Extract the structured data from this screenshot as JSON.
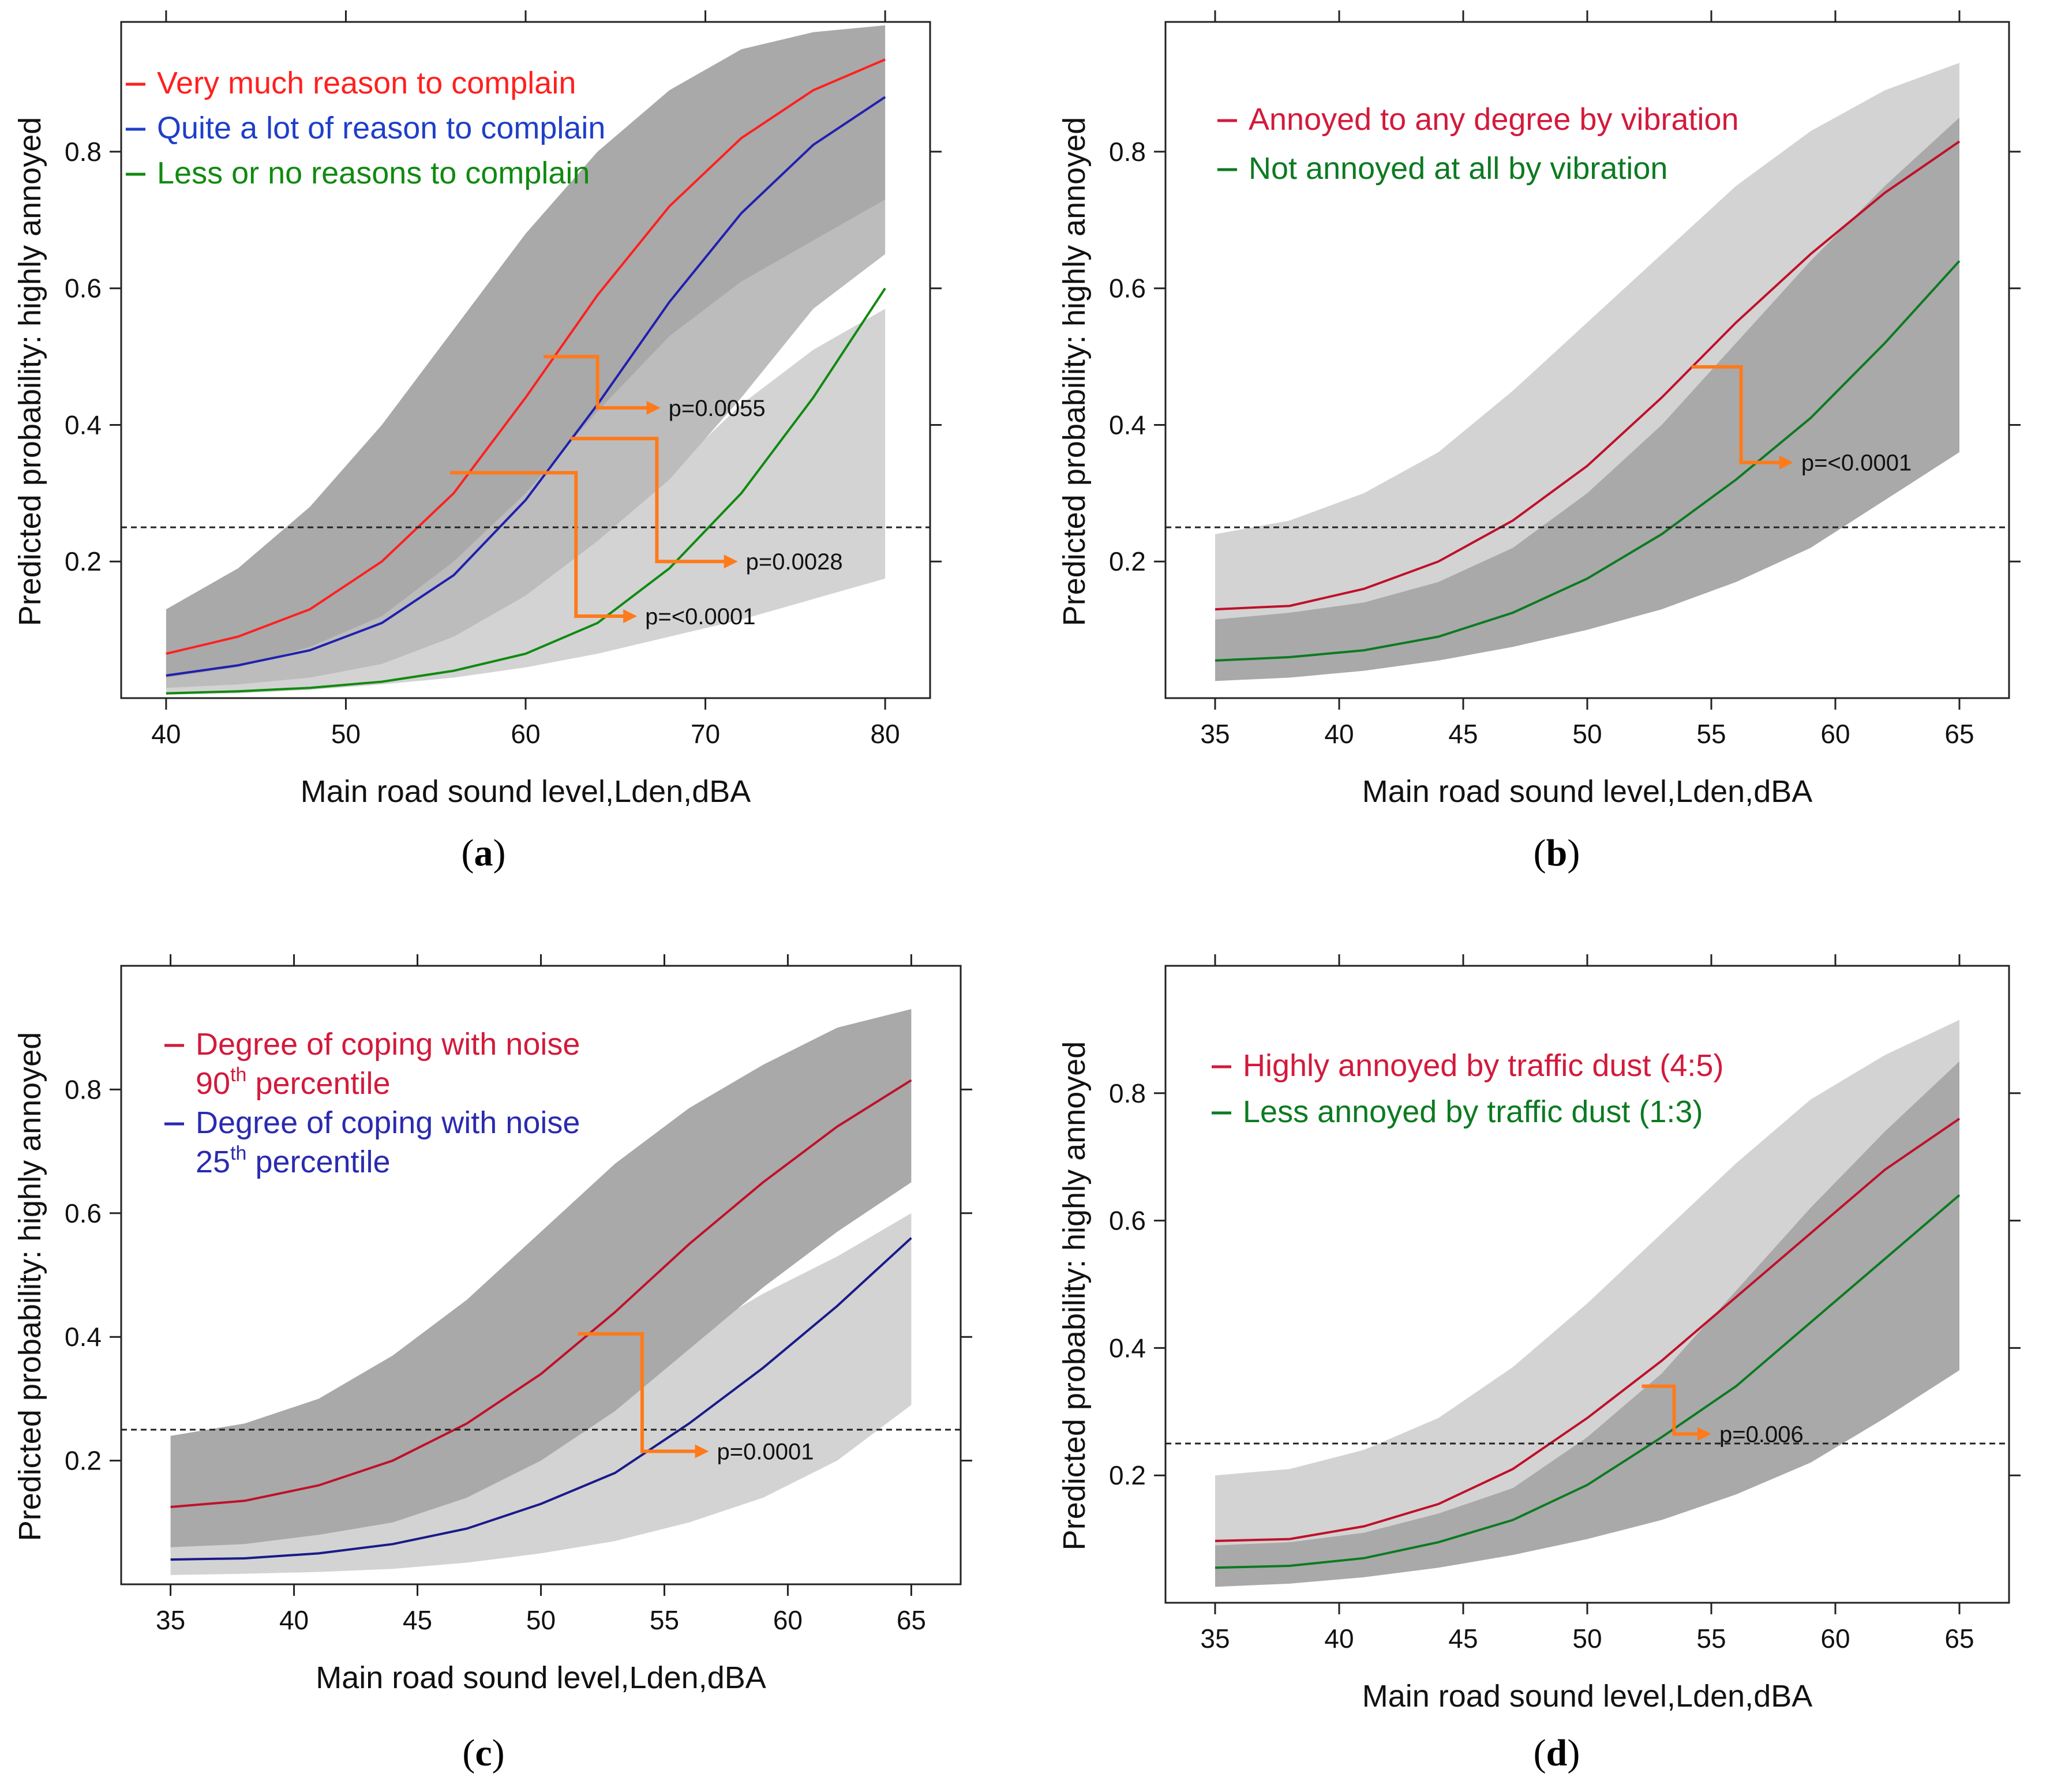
{
  "figure": {
    "description_labels": [
      "(a)",
      "(b)",
      "(c)",
      "(d)"
    ]
  },
  "chart_data": [
    {
      "id": "a",
      "type": "line",
      "caption_letter": "a",
      "xlabel": "Main road sound level,Lden,dBA",
      "ylabel": "Predicted probability: highly annoyed",
      "xlim": [
        37.5,
        82.5
      ],
      "ylim": [
        0,
        0.99
      ],
      "xticks": [
        40,
        50,
        60,
        70,
        80
      ],
      "yticks": [
        0.2,
        0.4,
        0.6,
        0.8
      ],
      "threshold": 0.25,
      "x": [
        40,
        44,
        48,
        52,
        56,
        60,
        64,
        68,
        72,
        76,
        80
      ],
      "bands": [
        {
          "name": "Less or no reasons to complain CI",
          "color": "#d3d3d3",
          "lower": [
            0.005,
            0.007,
            0.012,
            0.02,
            0.03,
            0.045,
            0.065,
            0.09,
            0.115,
            0.145,
            0.175
          ],
          "upper": [
            0.015,
            0.025,
            0.04,
            0.07,
            0.12,
            0.18,
            0.25,
            0.33,
            0.43,
            0.51,
            0.57
          ]
        },
        {
          "name": "Quite a lot of reason to complain CI",
          "color": "#bcbcbc",
          "lower": [
            0.015,
            0.02,
            0.03,
            0.05,
            0.09,
            0.15,
            0.23,
            0.32,
            0.44,
            0.57,
            0.65
          ],
          "upper": [
            0.07,
            0.1,
            0.14,
            0.22,
            0.33,
            0.46,
            0.55,
            0.62,
            0.67,
            0.7,
            0.73
          ]
        },
        {
          "name": "Very much reason to complain CI",
          "color": "#a9a9a9",
          "lower": [
            0.03,
            0.045,
            0.075,
            0.12,
            0.2,
            0.3,
            0.42,
            0.53,
            0.61,
            0.67,
            0.73
          ],
          "upper": [
            0.13,
            0.19,
            0.28,
            0.4,
            0.54,
            0.68,
            0.8,
            0.89,
            0.95,
            0.975,
            0.985
          ]
        }
      ],
      "series": [
        {
          "name": "Very much reason to complain",
          "color": "#ff2020",
          "legend_color": "#ff2020",
          "values": [
            0.065,
            0.09,
            0.13,
            0.2,
            0.3,
            0.44,
            0.59,
            0.72,
            0.82,
            0.89,
            0.935
          ]
        },
        {
          "name": "Quite a lot of reason to complain",
          "color": "#2020b0",
          "legend_color": "#1f3fc8",
          "values": [
            0.033,
            0.048,
            0.07,
            0.11,
            0.18,
            0.29,
            0.43,
            0.58,
            0.71,
            0.81,
            0.88
          ]
        },
        {
          "name": "Less or no reasons to complain",
          "color": "#108a10",
          "legend_color": "#108a10",
          "values": [
            0.007,
            0.01,
            0.015,
            0.024,
            0.04,
            0.065,
            0.11,
            0.19,
            0.3,
            0.44,
            0.6
          ]
        }
      ],
      "legend": [
        "Very much reason to complain",
        "Quite a lot of reason to complain",
        "Less or no reasons to complain"
      ],
      "comparisons": [
        {
          "label": "p=0.0055",
          "x_from": 61,
          "y_from": 0.5,
          "x_mid": 64,
          "y_to": 0.425,
          "x_to": 67.5
        },
        {
          "label": "p=0.0028",
          "x_from": 62.5,
          "y_from": 0.38,
          "x_mid": 67.3,
          "y_to": 0.2,
          "x_to": 71.8
        },
        {
          "label": "p=<0.0001",
          "x_from": 55.8,
          "y_from": 0.33,
          "x_mid": 62.8,
          "y_to": 0.12,
          "x_to": 66.2
        }
      ]
    },
    {
      "id": "b",
      "type": "line",
      "caption_letter": "b",
      "xlabel": "Main road sound level,Lden,dBA",
      "ylabel": "Predicted probability: highly annoyed",
      "xlim": [
        33.0,
        67.0
      ],
      "ylim": [
        0,
        0.99
      ],
      "xticks": [
        35,
        40,
        45,
        50,
        55,
        60,
        65
      ],
      "yticks": [
        0.2,
        0.4,
        0.6,
        0.8
      ],
      "threshold": 0.25,
      "x": [
        35,
        38,
        41,
        44,
        47,
        50,
        53,
        56,
        59,
        62,
        65
      ],
      "bands": [
        {
          "name": "Annoyed to any degree by vibration CI",
          "color": "#d3d3d3",
          "lower": [
            0.08,
            0.09,
            0.11,
            0.14,
            0.19,
            0.26,
            0.34,
            0.44,
            0.55,
            0.65,
            0.73
          ],
          "upper": [
            0.24,
            0.26,
            0.3,
            0.36,
            0.45,
            0.55,
            0.65,
            0.75,
            0.83,
            0.89,
            0.93
          ]
        },
        {
          "name": "Not annoyed at all by vibration CI",
          "color": "#a9a9a9",
          "lower": [
            0.025,
            0.03,
            0.04,
            0.055,
            0.075,
            0.1,
            0.13,
            0.17,
            0.22,
            0.29,
            0.36
          ],
          "upper": [
            0.115,
            0.125,
            0.14,
            0.17,
            0.22,
            0.3,
            0.4,
            0.52,
            0.64,
            0.75,
            0.85
          ]
        }
      ],
      "series": [
        {
          "name": "Annoyed to any degree by vibration",
          "color": "#c0102a",
          "legend_color": "#d21a3c",
          "values": [
            0.13,
            0.135,
            0.16,
            0.2,
            0.26,
            0.34,
            0.44,
            0.55,
            0.65,
            0.74,
            0.815
          ]
        },
        {
          "name": "Not annoyed at all by vibration",
          "color": "#0d7a22",
          "legend_color": "#0d7a22",
          "values": [
            0.055,
            0.06,
            0.07,
            0.09,
            0.125,
            0.175,
            0.24,
            0.32,
            0.41,
            0.52,
            0.64
          ]
        }
      ],
      "legend": [
        "Annoyed to any degree by vibration",
        "Not annoyed at all by vibration"
      ],
      "comparisons": [
        {
          "label": "p=<0.0001",
          "x_from": 54.2,
          "y_from": 0.485,
          "x_mid": 56.2,
          "y_to": 0.345,
          "x_to": 58.3
        }
      ]
    },
    {
      "id": "c",
      "type": "line",
      "caption_letter": "c",
      "xlabel": "Main road sound level,Lden,dBA",
      "ylabel": "Predicted probability: highly annoyed",
      "xlim": [
        33.0,
        67.0
      ],
      "ylim": [
        0,
        1.0
      ],
      "xticks": [
        35,
        40,
        45,
        50,
        55,
        60,
        65
      ],
      "yticks": [
        0.2,
        0.4,
        0.6,
        0.8
      ],
      "threshold": 0.25,
      "x": [
        35,
        38,
        41,
        44,
        47,
        50,
        53,
        56,
        59,
        62,
        65
      ],
      "bands": [
        {
          "name": "Degree of coping with noise 25th percentile CI",
          "color": "#d3d3d3",
          "lower": [
            0.015,
            0.017,
            0.02,
            0.025,
            0.035,
            0.05,
            0.07,
            0.1,
            0.14,
            0.2,
            0.29
          ],
          "upper": [
            0.065,
            0.07,
            0.09,
            0.12,
            0.17,
            0.24,
            0.32,
            0.4,
            0.47,
            0.53,
            0.6
          ]
        },
        {
          "name": "Degree of coping with noise 90th percentile CI",
          "color": "#a9a9a9",
          "lower": [
            0.06,
            0.065,
            0.08,
            0.1,
            0.14,
            0.2,
            0.28,
            0.38,
            0.48,
            0.57,
            0.65
          ],
          "upper": [
            0.24,
            0.26,
            0.3,
            0.37,
            0.46,
            0.57,
            0.68,
            0.77,
            0.84,
            0.9,
            0.93
          ]
        }
      ],
      "series": [
        {
          "name": "Degree of coping with noise 90th percentile",
          "color": "#c0102a",
          "legend_color": "#d21a3c",
          "values": [
            0.125,
            0.135,
            0.16,
            0.2,
            0.26,
            0.34,
            0.44,
            0.55,
            0.65,
            0.74,
            0.815
          ]
        },
        {
          "name": "Degree of coping with noise 25th percentile",
          "color": "#1a1a8a",
          "legend_color": "#2a2ab0",
          "values": [
            0.04,
            0.042,
            0.05,
            0.065,
            0.09,
            0.13,
            0.18,
            0.26,
            0.35,
            0.45,
            0.56
          ]
        }
      ],
      "legend_lines": [
        {
          "text": "Degree of coping with noise",
          "color_key": 0
        },
        {
          "pre": "90",
          "sup": "th",
          "post": " percentile",
          "color_key": 0
        },
        {
          "text": "Degree of coping with noise",
          "color_key": 1
        },
        {
          "pre": "25",
          "sup": "th",
          "post": " percentile",
          "color_key": 1
        }
      ],
      "comparisons": [
        {
          "label": "p=0.0001",
          "x_from": 51.5,
          "y_from": 0.405,
          "x_mid": 54.1,
          "y_to": 0.215,
          "x_to": 56.8
        }
      ]
    },
    {
      "id": "d",
      "type": "line",
      "caption_letter": "d",
      "xlabel": "Main road sound level,Lden,dBA",
      "ylabel": "Predicted probability: highly annoyed",
      "xlim": [
        33.0,
        67.0
      ],
      "ylim": [
        0,
        1.0
      ],
      "xticks": [
        35,
        40,
        45,
        50,
        55,
        60,
        65
      ],
      "yticks": [
        0.2,
        0.4,
        0.6,
        0.8
      ],
      "threshold": 0.25,
      "x": [
        35,
        38,
        41,
        44,
        47,
        50,
        53,
        56,
        59,
        62,
        65
      ],
      "bands": [
        {
          "name": "Highly annoyed by traffic dust CI",
          "color": "#d3d3d3",
          "lower": [
            0.045,
            0.05,
            0.06,
            0.08,
            0.11,
            0.16,
            0.23,
            0.33,
            0.44,
            0.54,
            0.63
          ],
          "upper": [
            0.2,
            0.21,
            0.24,
            0.29,
            0.37,
            0.47,
            0.58,
            0.69,
            0.79,
            0.86,
            0.915
          ]
        },
        {
          "name": "Less annoyed by traffic dust CI",
          "color": "#a9a9a9",
          "lower": [
            0.025,
            0.03,
            0.04,
            0.055,
            0.075,
            0.1,
            0.13,
            0.17,
            0.22,
            0.29,
            0.365
          ],
          "upper": [
            0.09,
            0.095,
            0.11,
            0.14,
            0.18,
            0.26,
            0.36,
            0.49,
            0.62,
            0.74,
            0.85
          ]
        }
      ],
      "series": [
        {
          "name": "Highly annoyed by traffic dust (4:5)",
          "color": "#c0102a",
          "legend_color": "#d21a3c",
          "values": [
            0.097,
            0.1,
            0.12,
            0.155,
            0.21,
            0.29,
            0.38,
            0.48,
            0.58,
            0.68,
            0.76
          ]
        },
        {
          "name": "Less annoyed by traffic dust (1:3)",
          "color": "#0d7a22",
          "legend_color": "#0d7a22",
          "values": [
            0.055,
            0.058,
            0.07,
            0.095,
            0.13,
            0.185,
            0.26,
            0.34,
            0.44,
            0.54,
            0.64
          ]
        }
      ],
      "legend": [
        "Highly annoyed by traffic dust (4:5)",
        "Less annoyed by traffic dust (1:3)"
      ],
      "comparisons": [
        {
          "label": "p=0.006",
          "x_from": 52.2,
          "y_from": 0.34,
          "x_mid": 53.5,
          "y_to": 0.265,
          "x_to": 55.0
        }
      ]
    }
  ]
}
